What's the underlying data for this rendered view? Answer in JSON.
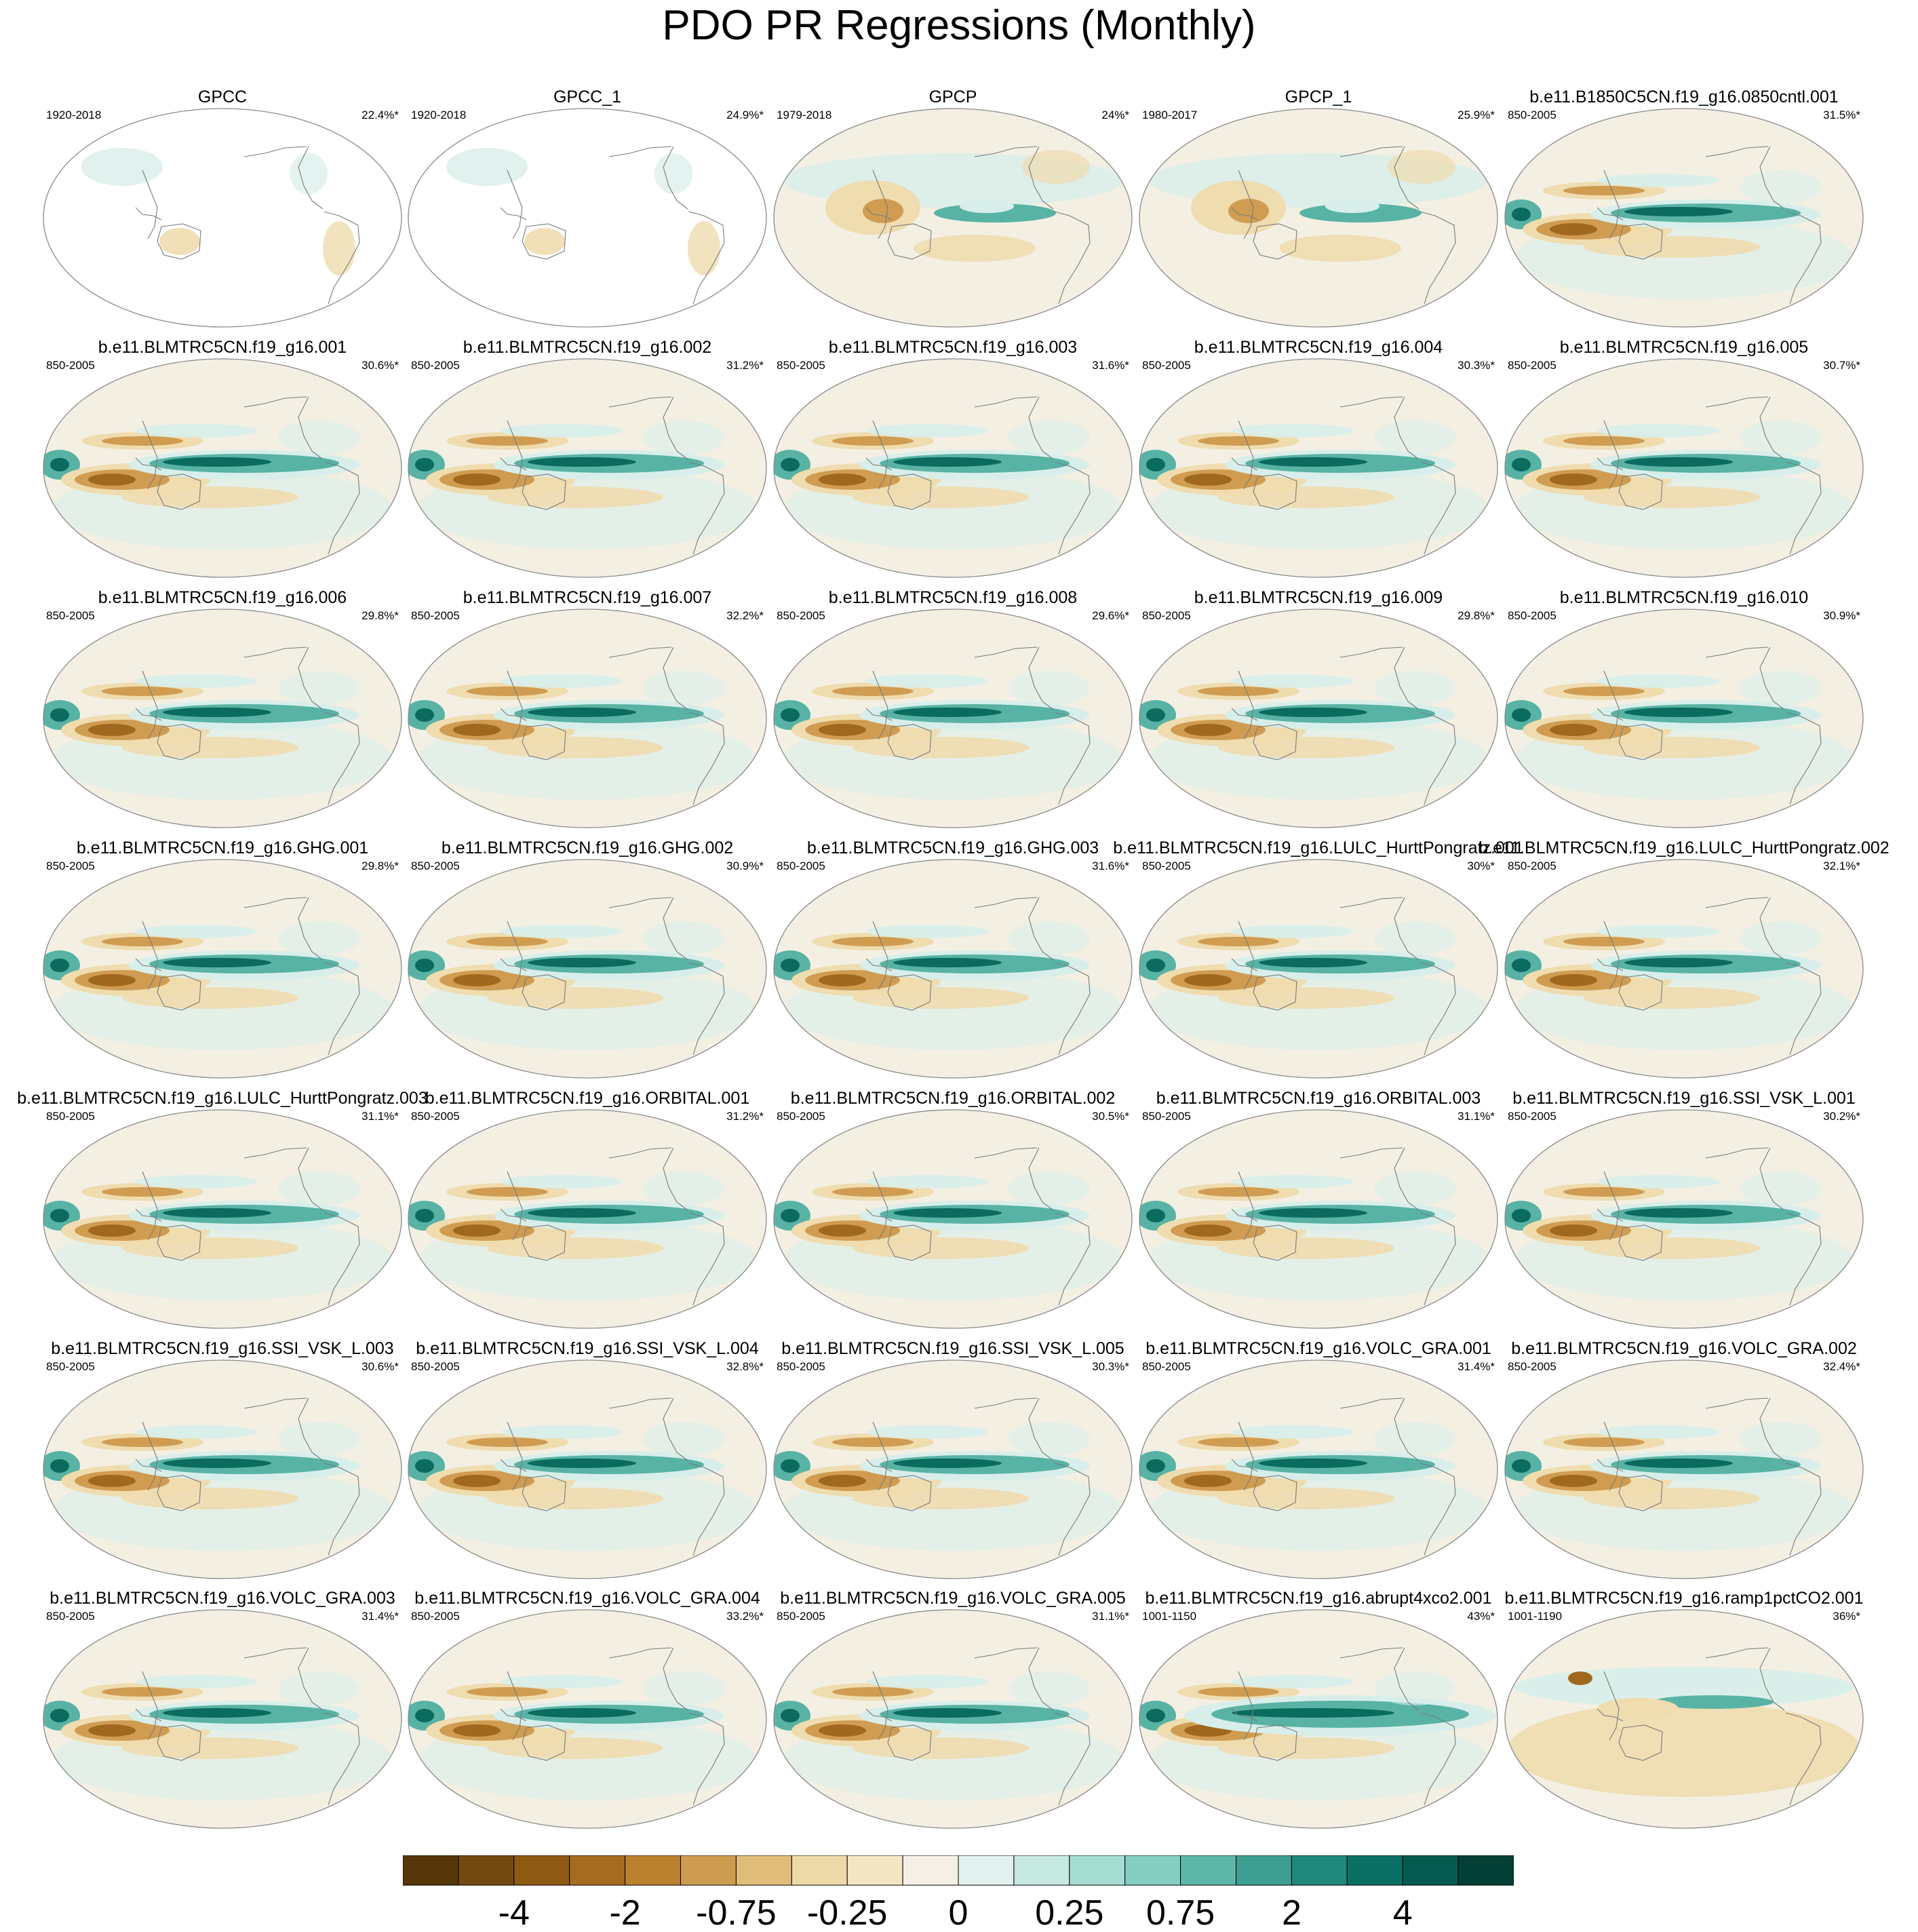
{
  "title": "PDO PR Regressions (Monthly)",
  "colors": {
    "brown_dark": "#5a3a0c",
    "brown_mid": "#a0681e",
    "tan": "#cf9c52",
    "light_tan": "#efdcaf",
    "neutral": "#f4efe3",
    "pale_teal": "#d8eeea",
    "teal": "#58b3a5",
    "teal_dark": "#0b6b5f",
    "outline": "#8a8a8a",
    "coast": "#7a7a7a"
  },
  "colorbar": {
    "colors": [
      "#563709",
      "#74490f",
      "#8f5a14",
      "#a56b1e",
      "#ba812e",
      "#ce9c50",
      "#e0bd79",
      "#eed9a8",
      "#f2e6c4",
      "#f4f0e6",
      "#e2f1ed",
      "#c6e9e2",
      "#a5ddd3",
      "#84cfc2",
      "#5eb6a8",
      "#3d9f91",
      "#1f897b",
      "#0b7064",
      "#065b50",
      "#033f35"
    ],
    "tick_labels": [
      "-4",
      "-2",
      "-0.75",
      "-0.25",
      "0",
      "0.25",
      "0.75",
      "2",
      "4"
    ]
  },
  "panels": [
    {
      "title": "GPCC",
      "period": "1920-2018",
      "pct": "22.4%*"
    },
    {
      "title": "GPCC_1",
      "period": "1920-2018",
      "pct": "24.9%*"
    },
    {
      "title": "GPCP",
      "period": "1979-2018",
      "pct": "24%*"
    },
    {
      "title": "GPCP_1",
      "period": "1980-2017",
      "pct": "25.9%*"
    },
    {
      "title": "b.e11.B1850C5CN.f19_g16.0850cntl.001",
      "period": "850-2005",
      "pct": "31.5%*"
    },
    {
      "title": "b.e11.BLMTRC5CN.f19_g16.001",
      "period": "850-2005",
      "pct": "30.6%*"
    },
    {
      "title": "b.e11.BLMTRC5CN.f19_g16.002",
      "period": "850-2005",
      "pct": "31.2%*"
    },
    {
      "title": "b.e11.BLMTRC5CN.f19_g16.003",
      "period": "850-2005",
      "pct": "31.6%*"
    },
    {
      "title": "b.e11.BLMTRC5CN.f19_g16.004",
      "period": "850-2005",
      "pct": "30.3%*"
    },
    {
      "title": "b.e11.BLMTRC5CN.f19_g16.005",
      "period": "850-2005",
      "pct": "30.7%*"
    },
    {
      "title": "b.e11.BLMTRC5CN.f19_g16.006",
      "period": "850-2005",
      "pct": "29.8%*"
    },
    {
      "title": "b.e11.BLMTRC5CN.f19_g16.007",
      "period": "850-2005",
      "pct": "32.2%*"
    },
    {
      "title": "b.e11.BLMTRC5CN.f19_g16.008",
      "period": "850-2005",
      "pct": "29.6%*"
    },
    {
      "title": "b.e11.BLMTRC5CN.f19_g16.009",
      "period": "850-2005",
      "pct": "29.8%*"
    },
    {
      "title": "b.e11.BLMTRC5CN.f19_g16.010",
      "period": "850-2005",
      "pct": "30.9%*"
    },
    {
      "title": "b.e11.BLMTRC5CN.f19_g16.GHG.001",
      "period": "850-2005",
      "pct": "29.8%*"
    },
    {
      "title": "b.e11.BLMTRC5CN.f19_g16.GHG.002",
      "period": "850-2005",
      "pct": "30.9%*"
    },
    {
      "title": "b.e11.BLMTRC5CN.f19_g16.GHG.003",
      "period": "850-2005",
      "pct": "31.6%*"
    },
    {
      "title": "b.e11.BLMTRC5CN.f19_g16.LULC_HurttPongratz.001",
      "period": "850-2005",
      "pct": "30%*"
    },
    {
      "title": "b.e11.BLMTRC5CN.f19_g16.LULC_HurttPongratz.002",
      "period": "850-2005",
      "pct": "32.1%*"
    },
    {
      "title": "b.e11.BLMTRC5CN.f19_g16.LULC_HurttPongratz.003",
      "period": "850-2005",
      "pct": "31.1%*"
    },
    {
      "title": "b.e11.BLMTRC5CN.f19_g16.ORBITAL.001",
      "period": "850-2005",
      "pct": "31.2%*"
    },
    {
      "title": "b.e11.BLMTRC5CN.f19_g16.ORBITAL.002",
      "period": "850-2005",
      "pct": "30.5%*"
    },
    {
      "title": "b.e11.BLMTRC5CN.f19_g16.ORBITAL.003",
      "period": "850-2005",
      "pct": "31.1%*"
    },
    {
      "title": "b.e11.BLMTRC5CN.f19_g16.SSI_VSK_L.001",
      "period": "850-2005",
      "pct": "30.2%*"
    },
    {
      "title": "b.e11.BLMTRC5CN.f19_g16.SSI_VSK_L.003",
      "period": "850-2005",
      "pct": "30.6%*"
    },
    {
      "title": "b.e11.BLMTRC5CN.f19_g16.SSI_VSK_L.004",
      "period": "850-2005",
      "pct": "32.8%*"
    },
    {
      "title": "b.e11.BLMTRC5CN.f19_g16.SSI_VSK_L.005",
      "period": "850-2005",
      "pct": "30.3%*"
    },
    {
      "title": "b.e11.BLMTRC5CN.f19_g16.VOLC_GRA.001",
      "period": "850-2005",
      "pct": "31.4%*"
    },
    {
      "title": "b.e11.BLMTRC5CN.f19_g16.VOLC_GRA.002",
      "period": "850-2005",
      "pct": "32.4%*"
    },
    {
      "title": "b.e11.BLMTRC5CN.f19_g16.VOLC_GRA.003",
      "period": "850-2005",
      "pct": "31.4%*"
    },
    {
      "title": "b.e11.BLMTRC5CN.f19_g16.VOLC_GRA.004",
      "period": "850-2005",
      "pct": "33.2%*"
    },
    {
      "title": "b.e11.BLMTRC5CN.f19_g16.VOLC_GRA.005",
      "period": "850-2005",
      "pct": "31.1%*"
    },
    {
      "title": "b.e11.BLMTRC5CN.f19_g16.abrupt4xco2.001",
      "period": "1001-1150",
      "pct": "43%*"
    },
    {
      "title": "b.e11.BLMTRC5CN.f19_g16.ramp1pctCO2.001",
      "period": "1001-1190",
      "pct": "36%*"
    }
  ],
  "chart_data": {
    "type": "heatmap",
    "title": "PDO PR Regressions (Monthly)",
    "colorbar_levels": [
      -4,
      -2,
      -0.75,
      -0.25,
      0,
      0.25,
      0.75,
      2,
      4
    ],
    "panels": [
      {
        "name": "GPCC",
        "period": "1920-2018",
        "pct_variance": 22.4,
        "land_only": true
      },
      {
        "name": "GPCC_1",
        "period": "1920-2018",
        "pct_variance": 24.9,
        "land_only": true
      },
      {
        "name": "GPCP",
        "period": "1979-2018",
        "pct_variance": 24
      },
      {
        "name": "GPCP_1",
        "period": "1980-2017",
        "pct_variance": 25.9
      },
      {
        "name": "b.e11.B1850C5CN.f19_g16.0850cntl.001",
        "period": "850-2005",
        "pct_variance": 31.5
      },
      {
        "name": "b.e11.BLMTRC5CN.f19_g16.001",
        "period": "850-2005",
        "pct_variance": 30.6
      },
      {
        "name": "b.e11.BLMTRC5CN.f19_g16.002",
        "period": "850-2005",
        "pct_variance": 31.2
      },
      {
        "name": "b.e11.BLMTRC5CN.f19_g16.003",
        "period": "850-2005",
        "pct_variance": 31.6
      },
      {
        "name": "b.e11.BLMTRC5CN.f19_g16.004",
        "period": "850-2005",
        "pct_variance": 30.3
      },
      {
        "name": "b.e11.BLMTRC5CN.f19_g16.005",
        "period": "850-2005",
        "pct_variance": 30.7
      },
      {
        "name": "b.e11.BLMTRC5CN.f19_g16.006",
        "period": "850-2005",
        "pct_variance": 29.8
      },
      {
        "name": "b.e11.BLMTRC5CN.f19_g16.007",
        "period": "850-2005",
        "pct_variance": 32.2
      },
      {
        "name": "b.e11.BLMTRC5CN.f19_g16.008",
        "period": "850-2005",
        "pct_variance": 29.6
      },
      {
        "name": "b.e11.BLMTRC5CN.f19_g16.009",
        "period": "850-2005",
        "pct_variance": 29.8
      },
      {
        "name": "b.e11.BLMTRC5CN.f19_g16.010",
        "period": "850-2005",
        "pct_variance": 30.9
      },
      {
        "name": "b.e11.BLMTRC5CN.f19_g16.GHG.001",
        "period": "850-2005",
        "pct_variance": 29.8
      },
      {
        "name": "b.e11.BLMTRC5CN.f19_g16.GHG.002",
        "period": "850-2005",
        "pct_variance": 30.9
      },
      {
        "name": "b.e11.BLMTRC5CN.f19_g16.GHG.003",
        "period": "850-2005",
        "pct_variance": 31.6
      },
      {
        "name": "b.e11.BLMTRC5CN.f19_g16.LULC_HurttPongratz.001",
        "period": "850-2005",
        "pct_variance": 30
      },
      {
        "name": "b.e11.BLMTRC5CN.f19_g16.LULC_HurttPongratz.002",
        "period": "850-2005",
        "pct_variance": 32.1
      },
      {
        "name": "b.e11.BLMTRC5CN.f19_g16.LULC_HurttPongratz.003",
        "period": "850-2005",
        "pct_variance": 31.1
      },
      {
        "name": "b.e11.BLMTRC5CN.f19_g16.ORBITAL.001",
        "period": "850-2005",
        "pct_variance": 31.2
      },
      {
        "name": "b.e11.BLMTRC5CN.f19_g16.ORBITAL.002",
        "period": "850-2005",
        "pct_variance": 30.5
      },
      {
        "name": "b.e11.BLMTRC5CN.f19_g16.ORBITAL.003",
        "period": "850-2005",
        "pct_variance": 31.1
      },
      {
        "name": "b.e11.BLMTRC5CN.f19_g16.SSI_VSK_L.001",
        "period": "850-2005",
        "pct_variance": 30.2
      },
      {
        "name": "b.e11.BLMTRC5CN.f19_g16.SSI_VSK_L.003",
        "period": "850-2005",
        "pct_variance": 30.6
      },
      {
        "name": "b.e11.BLMTRC5CN.f19_g16.SSI_VSK_L.004",
        "period": "850-2005",
        "pct_variance": 32.8
      },
      {
        "name": "b.e11.BLMTRC5CN.f19_g16.SSI_VSK_L.005",
        "period": "850-2005",
        "pct_variance": 30.3
      },
      {
        "name": "b.e11.BLMTRC5CN.f19_g16.VOLC_GRA.001",
        "period": "850-2005",
        "pct_variance": 31.4
      },
      {
        "name": "b.e11.BLMTRC5CN.f19_g16.VOLC_GRA.002",
        "period": "850-2005",
        "pct_variance": 32.4
      },
      {
        "name": "b.e11.BLMTRC5CN.f19_g16.VOLC_GRA.003",
        "period": "850-2005",
        "pct_variance": 31.4
      },
      {
        "name": "b.e11.BLMTRC5CN.f19_g16.VOLC_GRA.004",
        "period": "850-2005",
        "pct_variance": 33.2
      },
      {
        "name": "b.e11.BLMTRC5CN.f19_g16.VOLC_GRA.005",
        "period": "850-2005",
        "pct_variance": 31.1
      },
      {
        "name": "b.e11.BLMTRC5CN.f19_g16.abrupt4xco2.001",
        "period": "1001-1150",
        "pct_variance": 43
      },
      {
        "name": "b.e11.BLMTRC5CN.f19_g16.ramp1pctCO2.001",
        "period": "1001-1190",
        "pct_variance": 36
      }
    ]
  }
}
